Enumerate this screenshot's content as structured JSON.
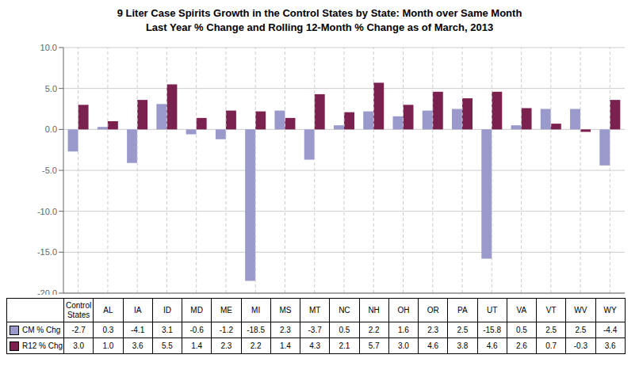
{
  "chart_data": {
    "type": "bar",
    "title": "9 Liter Case Spirits Growth in the Control States by State: Month over Same Month\nLast Year % Change and Rolling 12-Month % Change as of March, 2013",
    "categories": [
      "Control\nStates",
      "AL",
      "IA",
      "ID",
      "MD",
      "ME",
      "MI",
      "MS",
      "MT",
      "NC",
      "NH",
      "OH",
      "OR",
      "PA",
      "UT",
      "VA",
      "VT",
      "WV",
      "WY"
    ],
    "series": [
      {
        "name": "CM % Chg",
        "color": "#9999CC",
        "values": [
          -2.7,
          0.3,
          -4.1,
          3.1,
          -0.6,
          -1.2,
          -18.5,
          2.3,
          -3.7,
          0.5,
          2.2,
          1.6,
          2.3,
          2.5,
          -15.8,
          0.5,
          2.5,
          2.5,
          -4.4
        ],
        "value_labels": [
          "-2.7",
          "0.3",
          "-4.1",
          "3.1",
          "-0.6",
          "-1.2",
          "-18.5",
          "2.3",
          "-3.7",
          "0.5",
          "2.2",
          "1.6",
          "2.3",
          "2.5",
          "-15.8",
          "0.5",
          "2.5",
          "2.5",
          "-4.4"
        ]
      },
      {
        "name": "R12 % Chg",
        "color": "#7B2150",
        "values": [
          3.0,
          1.0,
          3.6,
          5.5,
          1.4,
          2.3,
          2.2,
          1.4,
          4.3,
          2.1,
          5.7,
          3.0,
          4.6,
          3.8,
          4.6,
          2.6,
          0.7,
          -0.3,
          3.6
        ],
        "value_labels": [
          "3.0",
          "1.0",
          "3.6",
          "5.5",
          "1.4",
          "2.3",
          "2.2",
          "1.4",
          "4.3",
          "2.1",
          "5.7",
          "3.0",
          "4.6",
          "3.8",
          "4.6",
          "2.6",
          "0.7",
          "-0.3",
          "3.6"
        ]
      }
    ],
    "ylim": [
      -20.0,
      10.0
    ],
    "yticks": [
      {
        "value": -20.0,
        "label": "-20.0"
      },
      {
        "value": -15.0,
        "label": "-15.0"
      },
      {
        "value": -10.0,
        "label": "-10.0"
      },
      {
        "value": -5.0,
        "label": "-5.0"
      },
      {
        "value": 0.0,
        "label": "0.0"
      },
      {
        "value": 5.0,
        "label": "5.0"
      },
      {
        "value": 10.0,
        "label": "10.0"
      }
    ],
    "grid": true
  }
}
